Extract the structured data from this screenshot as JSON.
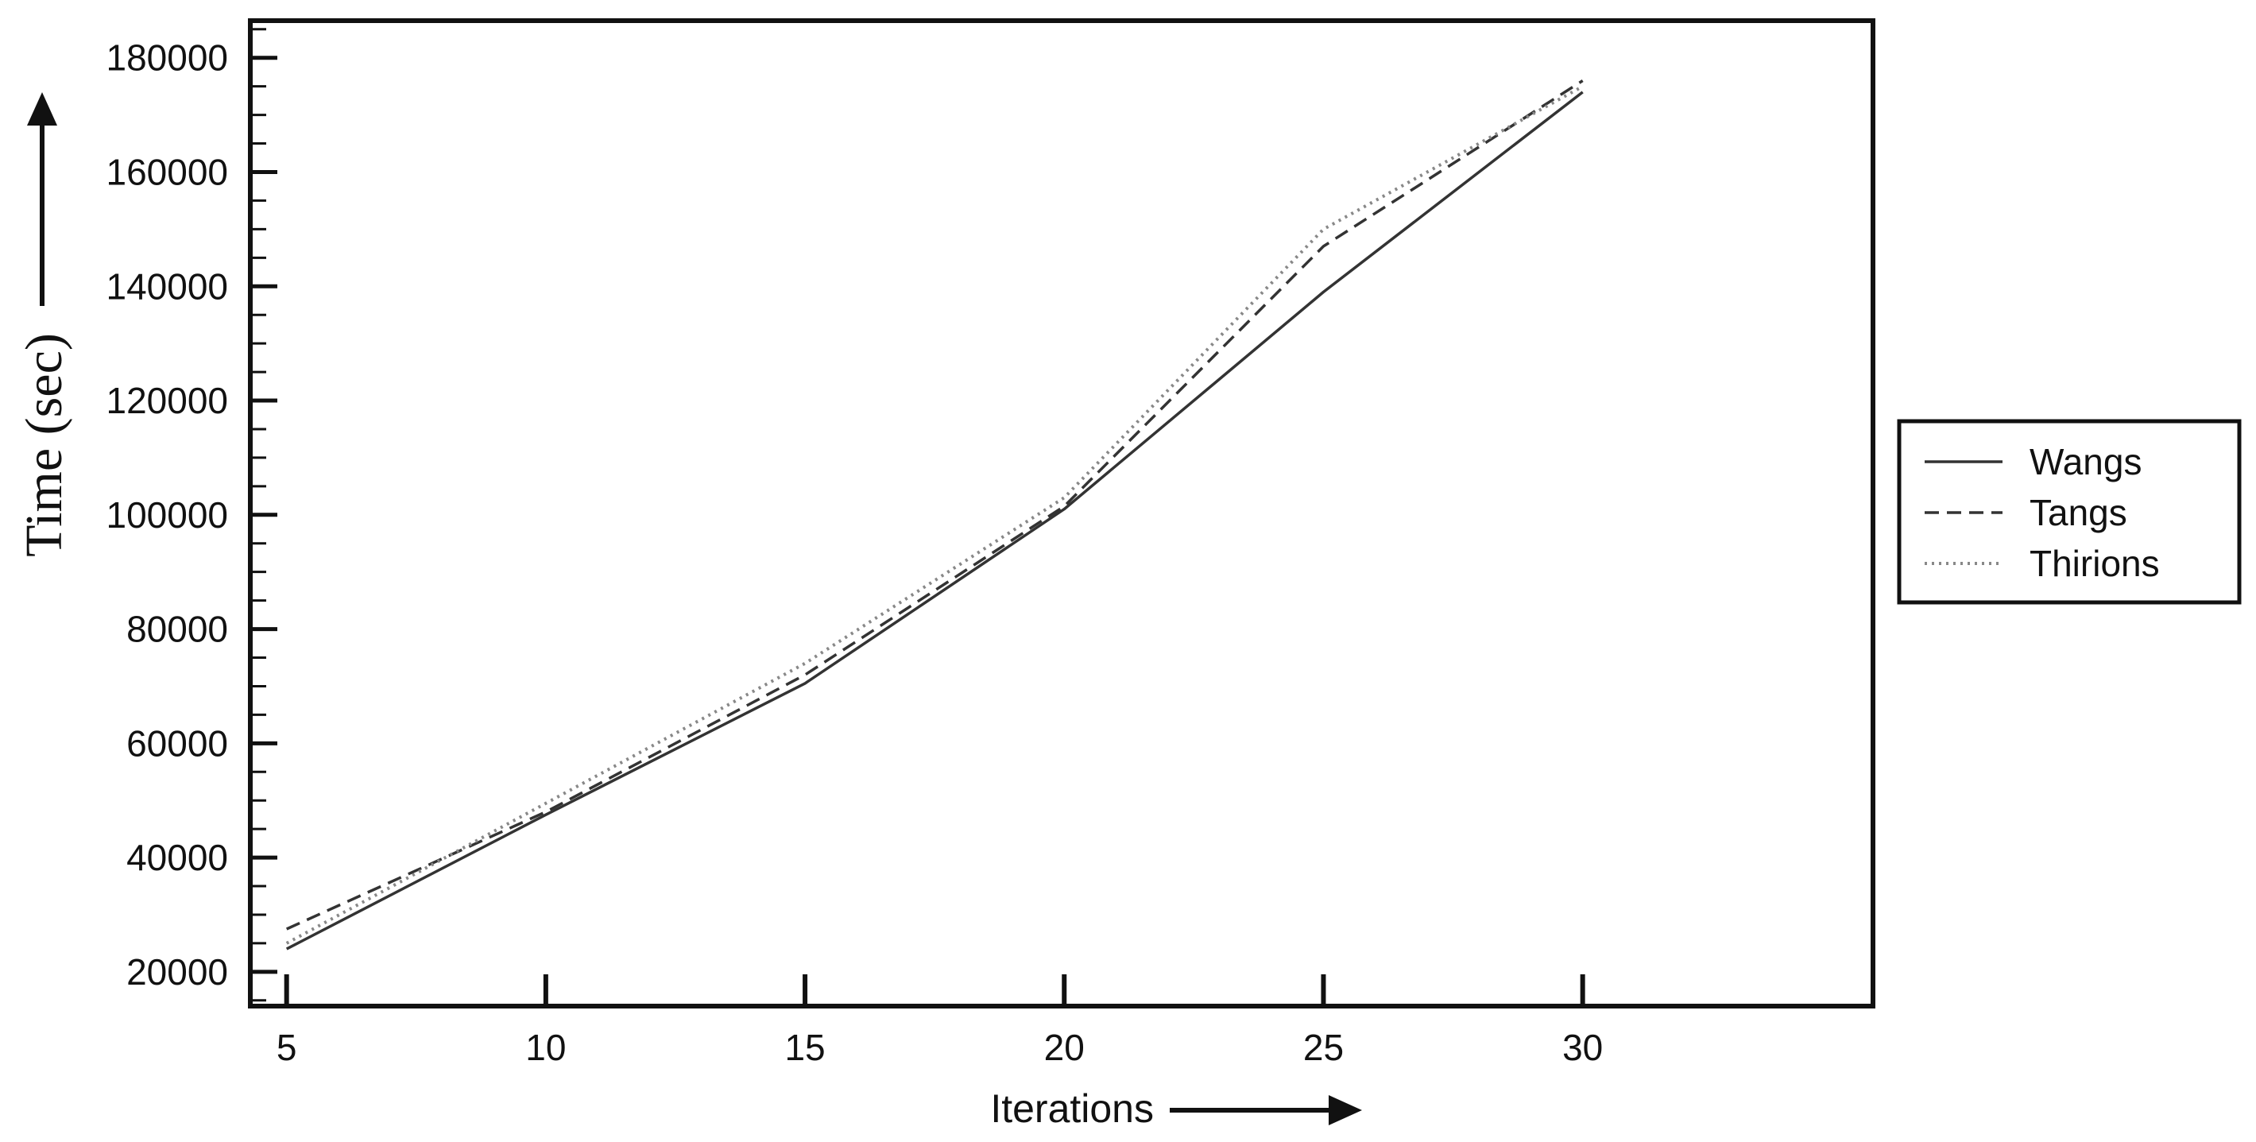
{
  "chart_data": {
    "type": "line",
    "title": "",
    "xlabel": "Iterations",
    "ylabel": "Time (sec)",
    "x": [
      5,
      10,
      15,
      20,
      25,
      30
    ],
    "x_ticks": [
      "5",
      "10",
      "15",
      "20",
      "25",
      "30"
    ],
    "y_ticks": [
      "20000",
      "40000",
      "60000",
      "80000",
      "100000",
      "120000",
      "140000",
      "160000",
      "180000"
    ],
    "xlim": [
      4.3,
      35.6
    ],
    "ylim": [
      14000,
      186500
    ],
    "grid": false,
    "legend_position": "right",
    "series": [
      {
        "name": "Wangs",
        "style": "solid",
        "values": [
          24000,
          47500,
          70500,
          101000,
          139000,
          174000
        ]
      },
      {
        "name": "Tangs",
        "style": "dashed",
        "values": [
          27500,
          48000,
          72000,
          101500,
          147000,
          176000
        ]
      },
      {
        "name": "Thirions",
        "style": "dotted",
        "values": [
          25000,
          49500,
          74000,
          103000,
          150000,
          175000
        ]
      }
    ],
    "colors": {
      "axis": "#111111",
      "lines": "#333333",
      "dotted": "#888888"
    }
  }
}
